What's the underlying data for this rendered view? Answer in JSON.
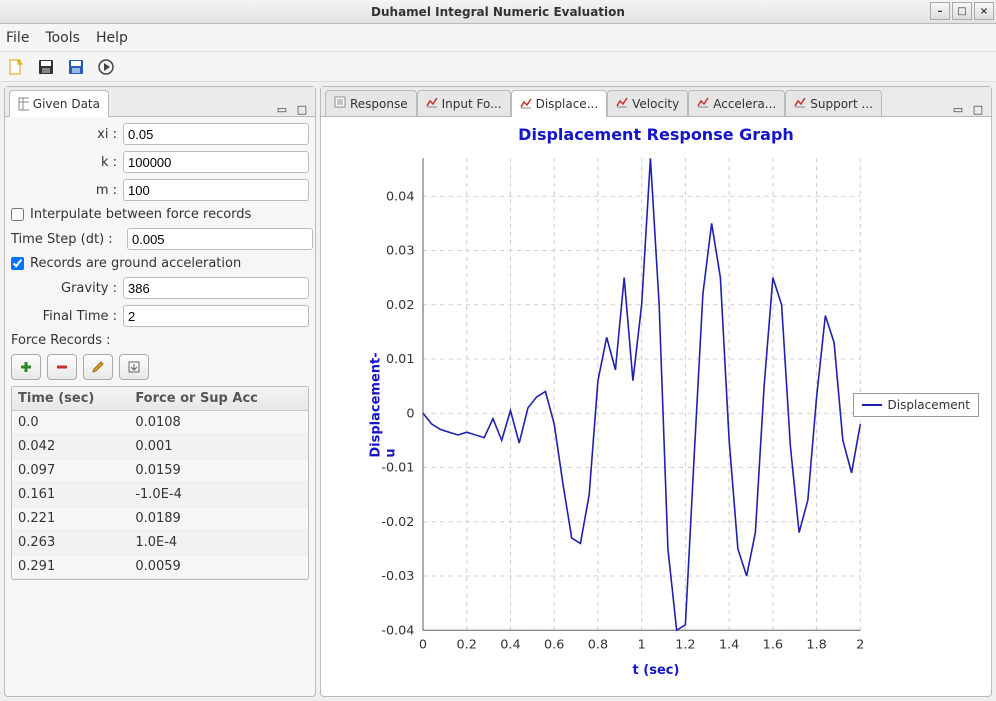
{
  "window": {
    "title": "Duhamel Integral Numeric Evaluation"
  },
  "menubar": {
    "items": [
      "File",
      "Tools",
      "Help"
    ]
  },
  "toolbar": {
    "icons": [
      "new",
      "save",
      "save-as",
      "run"
    ]
  },
  "left_panel": {
    "tab_label": "Given Data",
    "fields": {
      "xi": {
        "label": "xi :",
        "value": "0.05"
      },
      "k": {
        "label": "k :",
        "value": "100000"
      },
      "m": {
        "label": "m :",
        "value": "100"
      },
      "interpolate": {
        "label": "Interpulate between force records",
        "checked": false
      },
      "dt": {
        "label": "Time Step (dt) :",
        "value": "0.005"
      },
      "ground_acc": {
        "label": "Records are ground acceleration",
        "checked": true
      },
      "gravity": {
        "label": "Gravity :",
        "value": "386"
      },
      "final_time": {
        "label": "Final Time :",
        "value": "2"
      }
    },
    "force_records_label": "Force Records :",
    "table": {
      "headers": [
        "Time (sec)",
        "Force or Sup Acc"
      ],
      "rows": [
        [
          "0.0",
          "0.0108"
        ],
        [
          "0.042",
          "0.001"
        ],
        [
          "0.097",
          "0.0159"
        ],
        [
          "0.161",
          "-1.0E-4"
        ],
        [
          "0.221",
          "0.0189"
        ],
        [
          "0.263",
          "1.0E-4"
        ],
        [
          "0.291",
          "0.0059"
        ]
      ]
    }
  },
  "right_panel": {
    "tabs": [
      {
        "label": "Response",
        "active": false
      },
      {
        "label": "Input Fo...",
        "active": false
      },
      {
        "label": "Displace...",
        "active": true
      },
      {
        "label": "Velocity",
        "active": false
      },
      {
        "label": "Accelera...",
        "active": false
      },
      {
        "label": "Support ...",
        "active": false
      }
    ]
  },
  "chart": {
    "type": "line",
    "title": "Displacement Response Graph",
    "title_fontsize": 16,
    "title_color": "#1414c8",
    "xlabel": "t (sec)",
    "ylabel": "Displacement- u",
    "label_color": "#1414c8",
    "label_fontsize": 13,
    "xlim": [
      0,
      2
    ],
    "ylim": [
      -0.04,
      0.047
    ],
    "xtick_step": 0.2,
    "ytick_step": 0.01,
    "xticks": [
      0,
      0.2,
      0.4,
      0.6,
      0.8,
      1,
      1.2,
      1.4,
      1.6,
      1.8,
      2
    ],
    "yticks": [
      -0.04,
      -0.03,
      -0.02,
      -0.01,
      0,
      0.01,
      0.02,
      0.03,
      0.04
    ],
    "grid_color": "#cfcfcf",
    "grid_dash": "4 4",
    "axis_color": "#666666",
    "background_color": "#ffffff",
    "line_color": "#2020b0",
    "line_width": 1.5,
    "legend": {
      "label": "Displacement",
      "position": "right"
    },
    "series": {
      "t": [
        0,
        0.04,
        0.08,
        0.12,
        0.16,
        0.2,
        0.24,
        0.28,
        0.32,
        0.36,
        0.4,
        0.44,
        0.48,
        0.52,
        0.56,
        0.6,
        0.64,
        0.68,
        0.72,
        0.76,
        0.8,
        0.84,
        0.88,
        0.92,
        0.96,
        1.0,
        1.04,
        1.08,
        1.12,
        1.16,
        1.2,
        1.24,
        1.28,
        1.32,
        1.36,
        1.4,
        1.44,
        1.48,
        1.52,
        1.56,
        1.6,
        1.64,
        1.68,
        1.72,
        1.76,
        1.8,
        1.84,
        1.88,
        1.92,
        1.96,
        2.0
      ],
      "u": [
        0,
        -0.002,
        -0.003,
        -0.0035,
        -0.004,
        -0.0035,
        -0.004,
        -0.0045,
        -0.001,
        -0.005,
        0.0005,
        -0.0055,
        0.001,
        0.003,
        0.004,
        -0.002,
        -0.013,
        -0.023,
        -0.024,
        -0.015,
        0.006,
        0.014,
        0.008,
        0.025,
        0.006,
        0.02,
        0.047,
        0.02,
        -0.025,
        -0.04,
        -0.039,
        -0.008,
        0.022,
        0.035,
        0.025,
        -0.005,
        -0.025,
        -0.03,
        -0.022,
        0.005,
        0.025,
        0.02,
        -0.006,
        -0.022,
        -0.016,
        0.003,
        0.018,
        0.013,
        -0.005,
        -0.011,
        -0.002
      ]
    }
  },
  "colors": {
    "accent": "#1414c8",
    "line": "#2020b0"
  }
}
